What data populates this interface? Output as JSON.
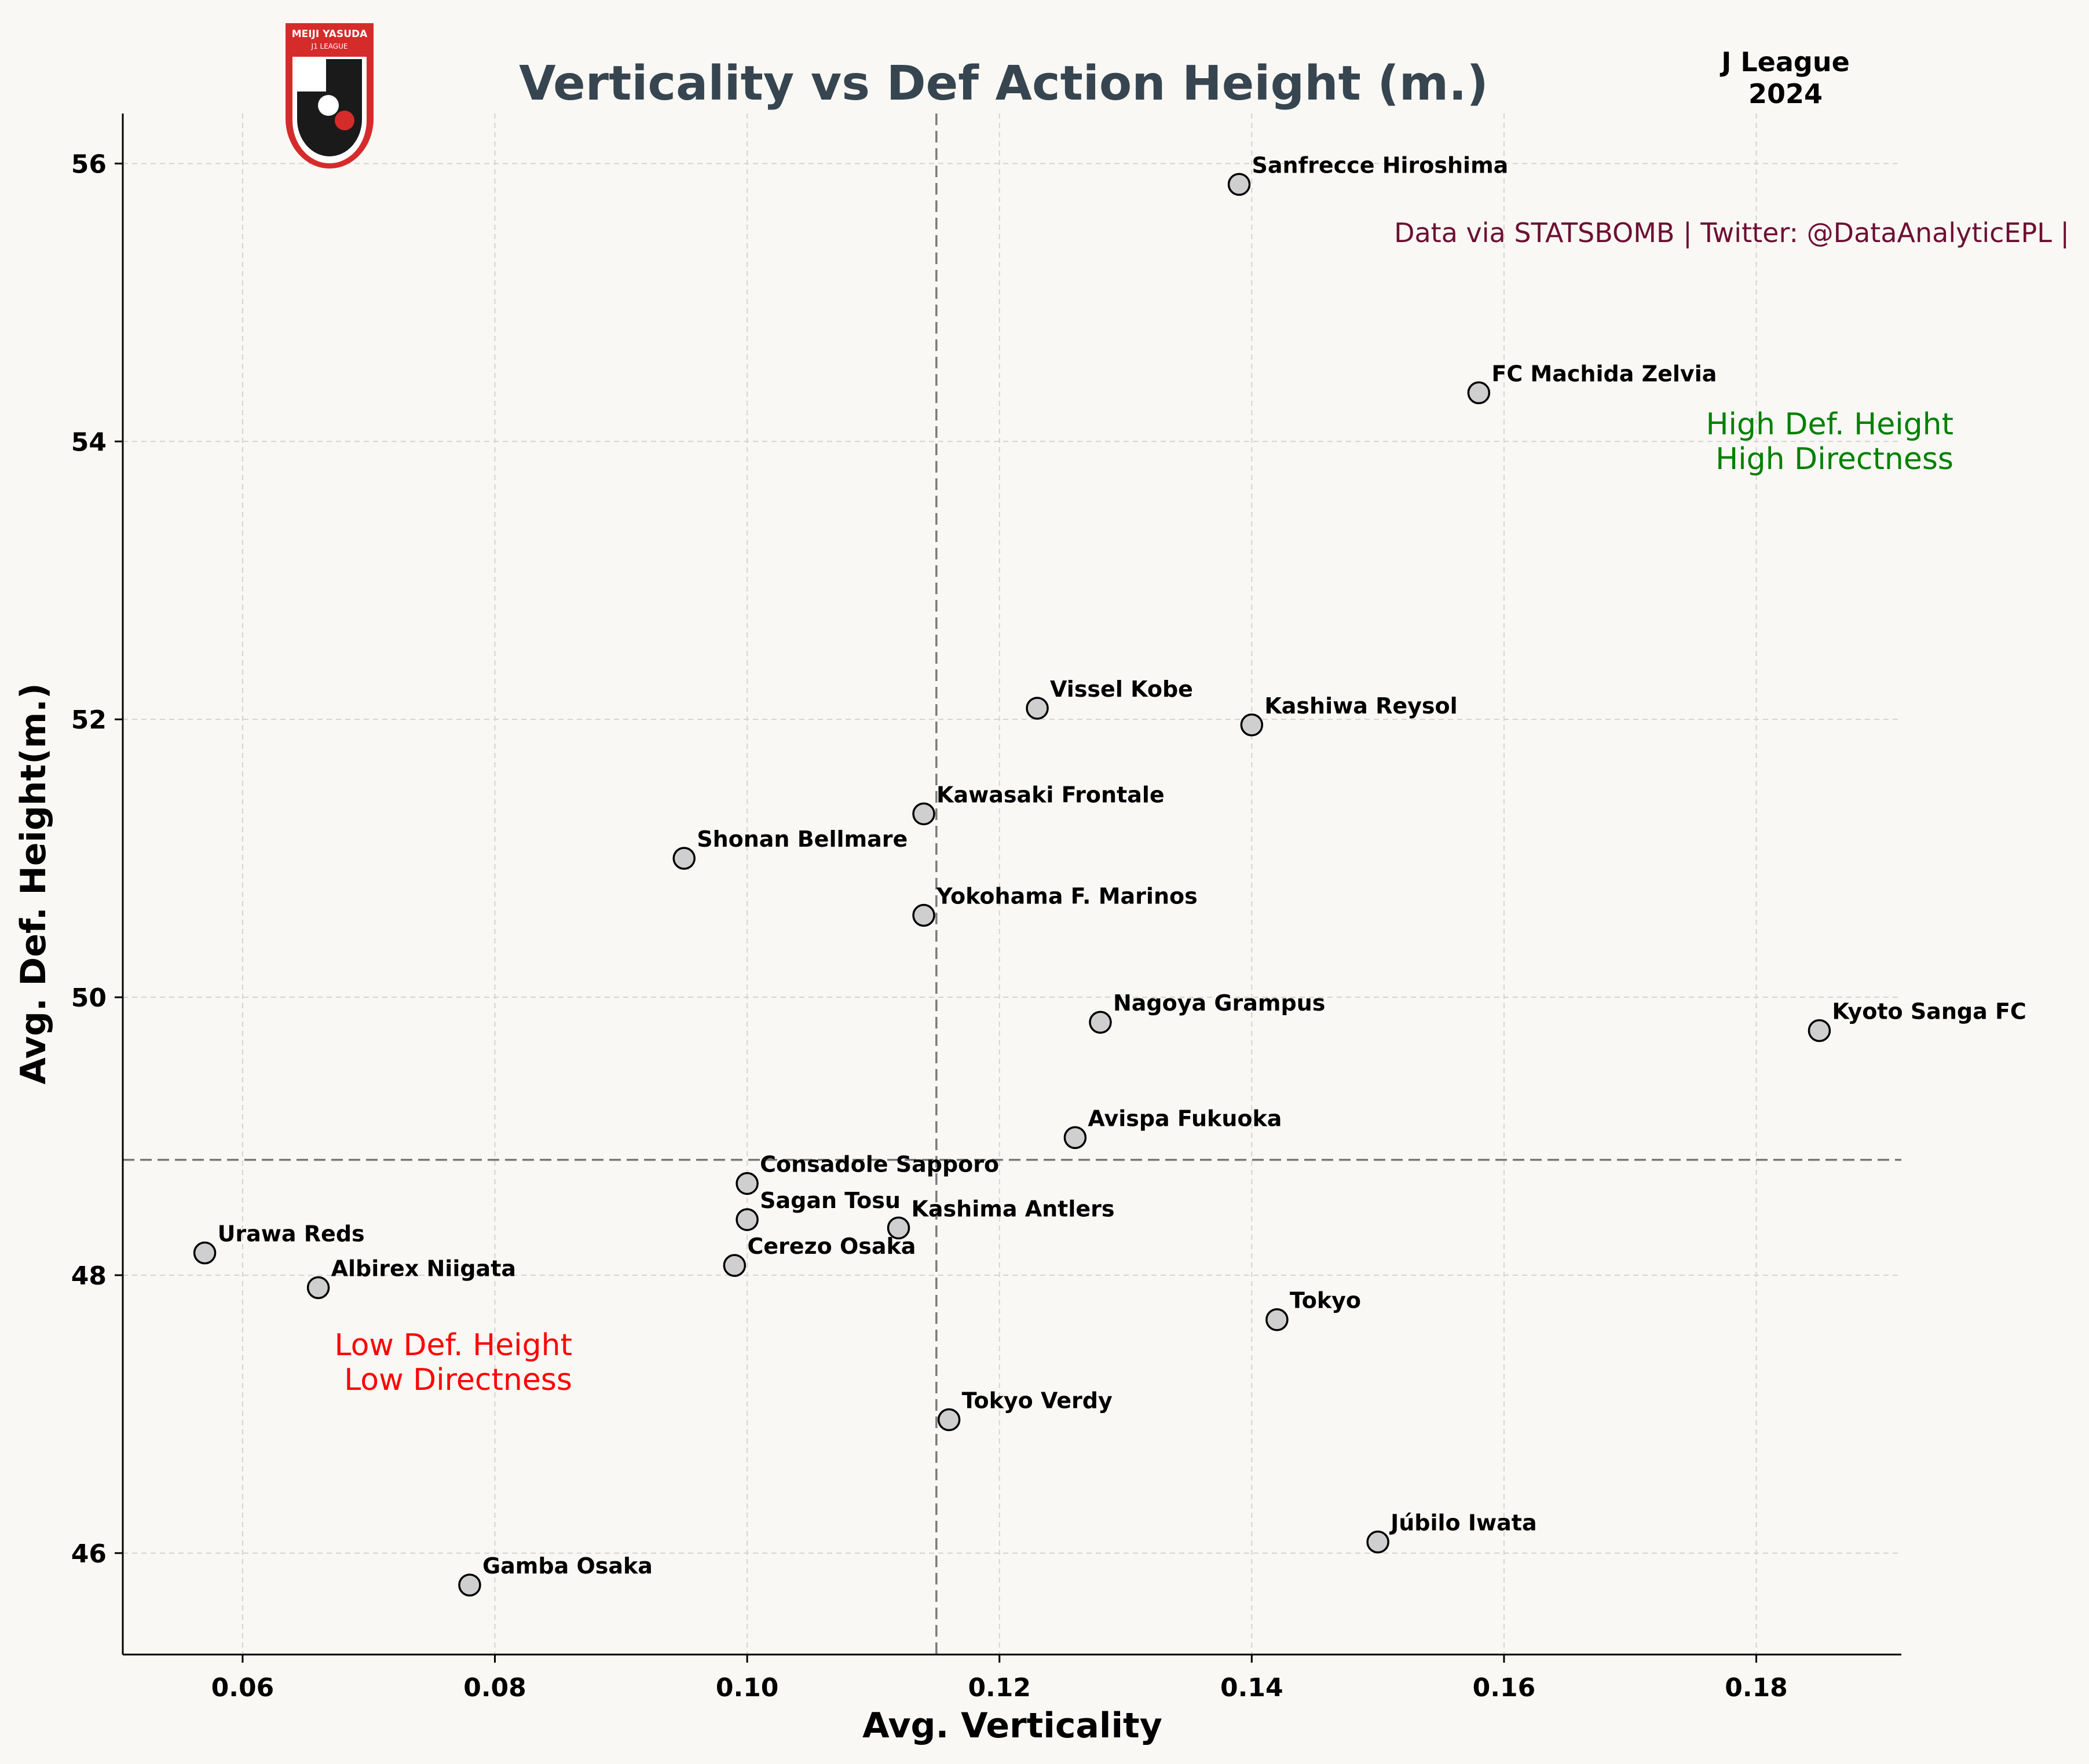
{
  "chart_data": {
    "type": "scatter",
    "title": "Verticality vs Def Action Height (m.)",
    "xlabel": "Avg. Verticality",
    "ylabel": "Avg. Def. Height(m.)",
    "xlim": [
      0.0505,
      0.1915
    ],
    "ylim": [
      45.27,
      56.36
    ],
    "x_ticks": [
      0.06,
      0.08,
      0.1,
      0.12,
      0.14,
      0.16,
      0.18
    ],
    "x_tick_labels": [
      "0.06",
      "0.08",
      "0.10",
      "0.12",
      "0.14",
      "0.16",
      "0.18"
    ],
    "y_ticks": [
      46,
      48,
      50,
      52,
      54,
      56
    ],
    "y_tick_labels": [
      "46",
      "48",
      "50",
      "52",
      "54",
      "56"
    ],
    "grid": true,
    "reference_lines": {
      "x": 0.115,
      "y": 48.83
    },
    "points": [
      {
        "label": "Sanfrecce Hiroshima",
        "x": 0.139,
        "y": 55.85
      },
      {
        "label": "FC Machida Zelvia",
        "x": 0.158,
        "y": 54.35
      },
      {
        "label": "Vissel Kobe",
        "x": 0.123,
        "y": 52.08
      },
      {
        "label": "Kashiwa Reysol",
        "x": 0.14,
        "y": 51.96
      },
      {
        "label": "Kawasaki Frontale",
        "x": 0.114,
        "y": 51.32
      },
      {
        "label": "Shonan Bellmare",
        "x": 0.095,
        "y": 51.0
      },
      {
        "label": "Yokohama F. Marinos",
        "x": 0.114,
        "y": 50.59
      },
      {
        "label": "Nagoya Grampus",
        "x": 0.128,
        "y": 49.82
      },
      {
        "label": "Kyoto Sanga FC",
        "x": 0.185,
        "y": 49.76
      },
      {
        "label": "Avispa Fukuoka",
        "x": 0.126,
        "y": 48.99
      },
      {
        "label": "Consadole Sapporo",
        "x": 0.1,
        "y": 48.66
      },
      {
        "label": "Sagan Tosu",
        "x": 0.1,
        "y": 48.4
      },
      {
        "label": "Kashima Antlers",
        "x": 0.112,
        "y": 48.34
      },
      {
        "label": "Urawa Reds",
        "x": 0.057,
        "y": 48.16
      },
      {
        "label": "Cerezo Osaka",
        "x": 0.099,
        "y": 48.07
      },
      {
        "label": "Albirex Niigata",
        "x": 0.066,
        "y": 47.91
      },
      {
        "label": "Tokyo",
        "x": 0.142,
        "y": 47.68
      },
      {
        "label": "Tokyo Verdy",
        "x": 0.116,
        "y": 46.96
      },
      {
        "label": "Júbilo Iwata",
        "x": 0.15,
        "y": 46.08
      },
      {
        "label": "Gamba Osaka",
        "x": 0.078,
        "y": 45.77
      }
    ],
    "annotations": {
      "high_quadrant": [
        "High Def. Height",
        "High Directness"
      ],
      "low_quadrant": [
        "Low Def. Height",
        "Low Directness"
      ],
      "credit": "Data via STATSBOMB | Twitter: @DataAnalyticEPL |",
      "league": [
        "J League",
        "2024"
      ]
    },
    "colors": {
      "background": "#f9f8f5",
      "title": "#36454f",
      "credit": "#6d0f33",
      "high_quadrant": "#008000",
      "low_quadrant": "#ff0000",
      "marker_fill": "#cfcfcf"
    }
  },
  "logo": {
    "name": "j-league-logo",
    "text_top": "MEIJI YASUDA",
    "text_sub": "J1 LEAGUE"
  }
}
